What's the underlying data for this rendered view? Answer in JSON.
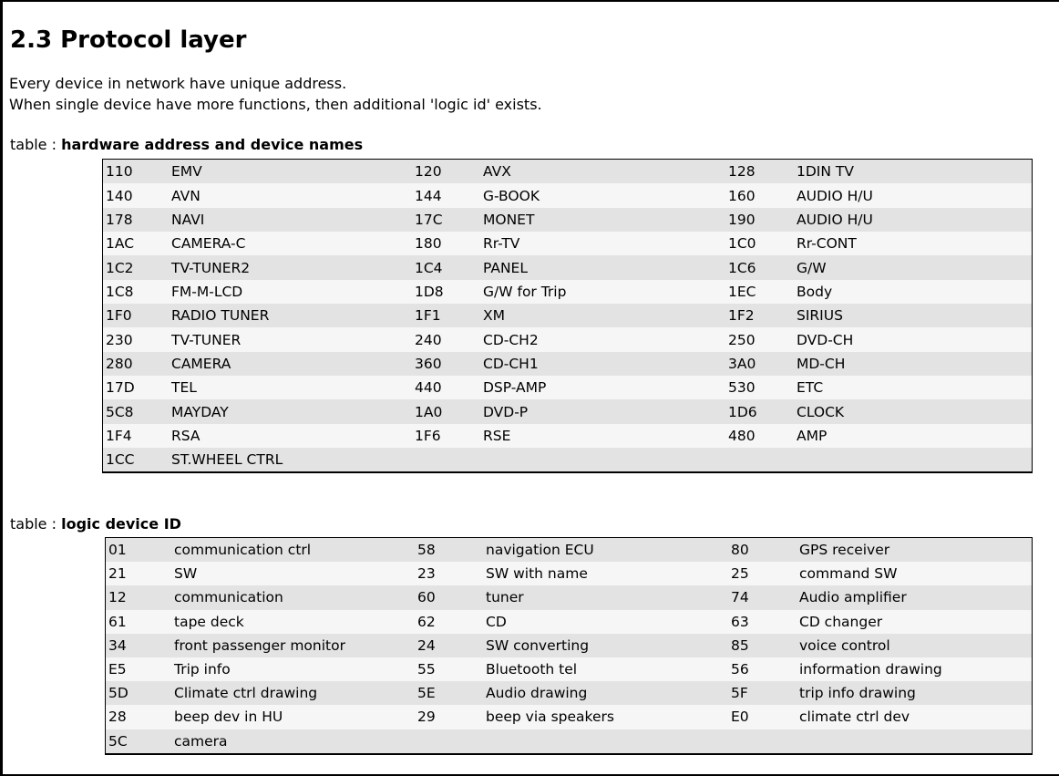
{
  "page_title": "2.3 Protocol layer",
  "intro": [
    "Every device in network have unique address.",
    "When single device have more functions, then additional 'logic id' exists."
  ],
  "colors": {
    "row_stripe": "#e3e3e3",
    "row_alt": "#f6f6f6",
    "border": "#000000",
    "text": "#000000",
    "page_background": "#ffffff"
  },
  "tables": [
    {
      "label_prefix": "table : ",
      "label": "hardware address and device names",
      "column_roles": [
        "address",
        "device name",
        "address",
        "device name",
        "address",
        "device name"
      ],
      "rows": [
        [
          "110",
          "EMV",
          "120",
          "AVX",
          "128",
          "1DIN TV"
        ],
        [
          "140",
          "AVN",
          "144",
          "G-BOOK",
          "160",
          "AUDIO H/U"
        ],
        [
          "178",
          "NAVI",
          "17C",
          "MONET",
          "190",
          "AUDIO H/U"
        ],
        [
          "1AC",
          "CAMERA-C",
          "180",
          "Rr-TV",
          "1C0",
          "Rr-CONT"
        ],
        [
          "1C2",
          "TV-TUNER2",
          "1C4",
          "PANEL",
          "1C6",
          "G/W"
        ],
        [
          "1C8",
          "FM-M-LCD",
          "1D8",
          "G/W for Trip",
          "1EC",
          "Body"
        ],
        [
          "1F0",
          "RADIO TUNER",
          "1F1",
          "XM",
          "1F2",
          "SIRIUS"
        ],
        [
          "230",
          "TV-TUNER",
          "240",
          "CD-CH2",
          "250",
          "DVD-CH"
        ],
        [
          "280",
          "CAMERA",
          "360",
          "CD-CH1",
          "3A0",
          "MD-CH"
        ],
        [
          "17D",
          "TEL",
          "440",
          "DSP-AMP",
          "530",
          "ETC"
        ],
        [
          "5C8",
          "MAYDAY",
          "1A0",
          "DVD-P",
          "1D6",
          "CLOCK"
        ],
        [
          "1F4",
          "RSA",
          "1F6",
          "RSE",
          "480",
          "AMP"
        ],
        [
          "1CC",
          "ST.WHEEL CTRL",
          "",
          "",
          "",
          ""
        ]
      ]
    },
    {
      "label_prefix": "table : ",
      "label": "logic device ID",
      "column_roles": [
        "id",
        "function",
        "id",
        "function",
        "id",
        "function"
      ],
      "rows": [
        [
          "01",
          "communication ctrl",
          "58",
          "navigation ECU",
          "80",
          "GPS receiver"
        ],
        [
          "21",
          "SW",
          "23",
          "SW with name",
          "25",
          "command SW"
        ],
        [
          "12",
          "communication",
          "60",
          "tuner",
          "74",
          "Audio amplifier"
        ],
        [
          "61",
          "tape deck",
          "62",
          "CD",
          "63",
          "CD changer"
        ],
        [
          "34",
          "front passenger monitor",
          "24",
          "SW converting",
          "85",
          "voice control"
        ],
        [
          "E5",
          "Trip info",
          "55",
          "Bluetooth tel",
          "56",
          "information drawing"
        ],
        [
          "5D",
          "Climate ctrl drawing",
          "5E",
          "Audio drawing",
          "5F",
          "trip info drawing"
        ],
        [
          "28",
          "beep dev in HU",
          "29",
          "beep via speakers",
          "E0",
          "climate ctrl dev"
        ],
        [
          "5C",
          "camera",
          "",
          "",
          "",
          ""
        ]
      ]
    }
  ]
}
